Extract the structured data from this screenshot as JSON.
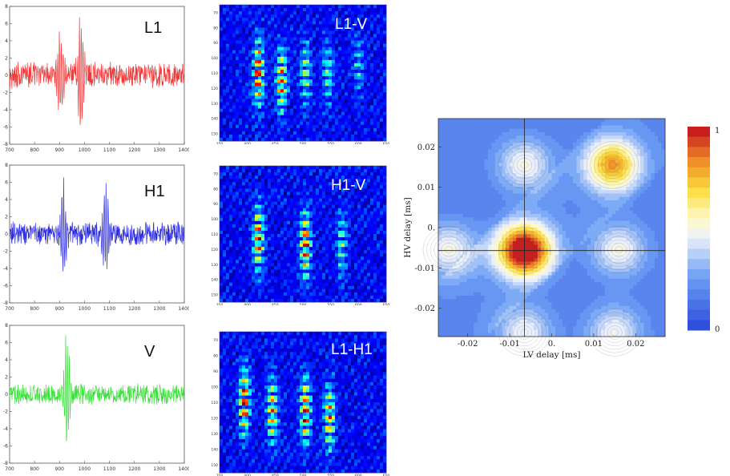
{
  "chart_data": [
    {
      "type": "line",
      "panel": "waveform-1",
      "label": "L1",
      "color": "#f03a3a",
      "xlim": [
        700,
        1400
      ],
      "ylim": [
        -8,
        8
      ],
      "xticks": [
        "700",
        "800",
        "900",
        "1000",
        "1100",
        "1200",
        "1300",
        "1400"
      ],
      "yticks": [
        "8",
        "6",
        "4",
        "2",
        "0",
        "-2",
        "-4",
        "-6",
        "-8"
      ],
      "bursts": [
        {
          "center": 905,
          "amplitude": 5.5
        },
        {
          "center": 985,
          "amplitude": 7.5
        }
      ],
      "noise_amplitude": 1.3
    },
    {
      "type": "line",
      "panel": "waveform-2",
      "label": "H1",
      "color": "#2d2de0",
      "xlim": [
        700,
        1400
      ],
      "ylim": [
        -8,
        8
      ],
      "xticks": [
        "700",
        "800",
        "900",
        "1000",
        "1100",
        "1200",
        "1300",
        "1400"
      ],
      "yticks": [
        "8",
        "6",
        "4",
        "2",
        "0",
        "-2",
        "-4",
        "-6",
        "-8"
      ],
      "bursts": [
        {
          "center": 915,
          "amplitude": 6.0
        },
        {
          "center": 1085,
          "amplitude": 6.0
        }
      ],
      "noise_amplitude": 1.2
    },
    {
      "type": "line",
      "panel": "waveform-3",
      "label": "V",
      "color": "#38e038",
      "xlim": [
        700,
        1400
      ],
      "ylim": [
        -8,
        8
      ],
      "xticks": [
        "700",
        "800",
        "900",
        "1000",
        "1100",
        "1200",
        "1300",
        "1400"
      ],
      "yticks": [
        "8",
        "6",
        "4",
        "2",
        "0",
        "-2",
        "-4",
        "-6",
        "-8"
      ],
      "bursts": [
        {
          "center": 930,
          "amplitude": 7.8
        }
      ],
      "noise_amplitude": 1.0
    },
    {
      "type": "heatmap",
      "panel": "spectrogram-1",
      "label": "L1-V",
      "xlim": [
        350,
        650
      ],
      "ylim": [
        60,
        150
      ],
      "xticks": [
        "350",
        "400",
        "450",
        "500",
        "550",
        "600",
        "650"
      ],
      "yticks": [
        "70",
        "80",
        "90",
        "100",
        "110",
        "120",
        "130",
        "140",
        "150"
      ],
      "blobs": [
        {
          "x": 420,
          "y": 105,
          "intensity": 1.0
        },
        {
          "x": 462,
          "y": 110,
          "intensity": 0.85
        },
        {
          "x": 505,
          "y": 105,
          "intensity": 0.55
        },
        {
          "x": 545,
          "y": 105,
          "intensity": 0.45
        },
        {
          "x": 600,
          "y": 100,
          "intensity": 0.3
        }
      ]
    },
    {
      "type": "heatmap",
      "panel": "spectrogram-2",
      "label": "H1-V",
      "xlim": [
        350,
        650
      ],
      "ylim": [
        60,
        150
      ],
      "xticks": [
        "350",
        "400",
        "450",
        "500",
        "550",
        "600",
        "650"
      ],
      "yticks": [
        "70",
        "80",
        "90",
        "100",
        "110",
        "120",
        "130",
        "140",
        "150"
      ],
      "blobs": [
        {
          "x": 420,
          "y": 108,
          "intensity": 0.9
        },
        {
          "x": 505,
          "y": 112,
          "intensity": 1.0
        },
        {
          "x": 570,
          "y": 112,
          "intensity": 0.45
        }
      ]
    },
    {
      "type": "heatmap",
      "panel": "spectrogram-3",
      "label": "L1-H1",
      "xlim": [
        350,
        650
      ],
      "ylim": [
        60,
        150
      ],
      "xticks": [
        "350",
        "400",
        "450",
        "500",
        "550",
        "600",
        "650"
      ],
      "yticks": [
        "70",
        "80",
        "90",
        "100",
        "110",
        "120",
        "130",
        "140",
        "150"
      ],
      "blobs": [
        {
          "x": 395,
          "y": 105,
          "intensity": 1.0
        },
        {
          "x": 445,
          "y": 110,
          "intensity": 0.8
        },
        {
          "x": 505,
          "y": 110,
          "intensity": 0.95
        },
        {
          "x": 548,
          "y": 115,
          "intensity": 0.8
        }
      ]
    },
    {
      "type": "heatmap",
      "panel": "correlation-contour",
      "xlabel": "LV delay [ms]",
      "ylabel": "HV delay [ms]",
      "xlim": [
        -0.027,
        0.027
      ],
      "ylim": [
        -0.027,
        0.027
      ],
      "xticks": [
        "-0.02",
        "-0.01",
        "0.",
        "0.01",
        "0.02"
      ],
      "yticks": [
        "0.02",
        "0.01",
        "0.",
        "-0.01",
        "-0.02"
      ],
      "crosshair": {
        "x": -0.0065,
        "y": -0.0057
      },
      "peaks": [
        {
          "x": -0.0065,
          "y": -0.0057,
          "value": 1.0
        },
        {
          "x": 0.0145,
          "y": 0.0155,
          "value": 0.65
        },
        {
          "x": -0.0245,
          "y": -0.0055,
          "value": 0.42
        },
        {
          "x": 0.016,
          "y": -0.0055,
          "value": 0.42
        },
        {
          "x": -0.0065,
          "y": 0.0155,
          "value": 0.42
        },
        {
          "x": -0.0065,
          "y": -0.026,
          "value": 0.4
        },
        {
          "x": 0.015,
          "y": -0.026,
          "value": 0.4
        }
      ],
      "colorbar": {
        "min_label": "0",
        "max_label": "1"
      }
    }
  ]
}
